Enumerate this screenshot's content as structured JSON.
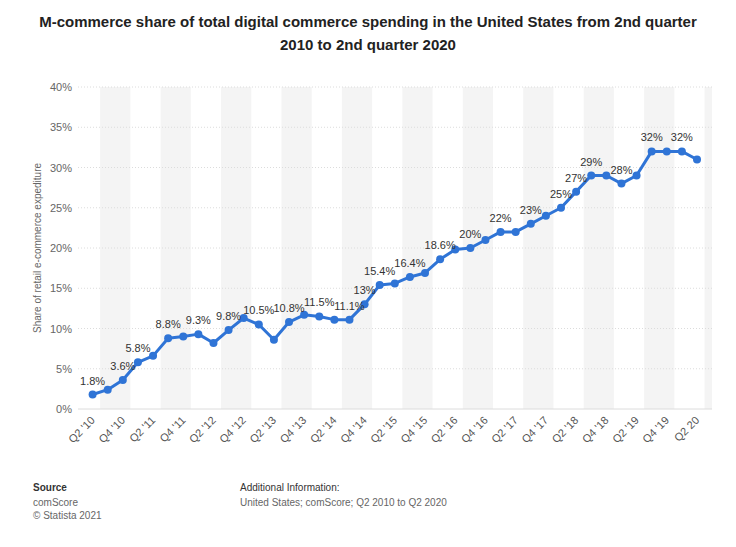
{
  "chart_data": {
    "type": "line",
    "title": "M-commerce share of total digital commerce spending in the United States from 2nd quarter 2010 to 2nd quarter 2020",
    "y_label": "Share of retail e-commerce expediture",
    "source_label": "Source",
    "source": "comScore",
    "copyright": "© Statista 2021",
    "info_label": "Additional Information:",
    "info": "United States; comScore; Q2 2010 to Q2 2020",
    "categories": [
      "Q2 '10",
      null,
      "Q4 '10",
      null,
      "Q2 '11",
      null,
      "Q4 '11",
      null,
      "Q2 '12",
      null,
      "Q4 '12",
      null,
      "Q2 '13",
      null,
      "Q4 '13",
      null,
      "Q2 '14",
      null,
      "Q4 '14",
      null,
      "Q2 '15",
      null,
      "Q4 '15",
      null,
      "Q2 '16",
      null,
      "Q4 '16",
      null,
      "Q2 '17",
      null,
      "Q4 '17",
      null,
      "Q2 '18",
      null,
      "Q4 '18",
      null,
      "Q2 '19",
      null,
      "Q4 '19",
      null,
      "Q2 20"
    ],
    "values": [
      1.8,
      2.4,
      3.6,
      5.8,
      6.6,
      8.8,
      9.0,
      9.3,
      8.2,
      9.8,
      11.3,
      10.5,
      8.6,
      10.8,
      11.7,
      11.5,
      11.1,
      11.1,
      13,
      15.4,
      15.6,
      16.4,
      16.9,
      18.6,
      19.8,
      20,
      21,
      22,
      22,
      23,
      24,
      25,
      27,
      29,
      29,
      28,
      29,
      32,
      32,
      32,
      31
    ],
    "value_labels": [
      "1.8%",
      null,
      "3.6%",
      "5.8%",
      null,
      "8.8%",
      null,
      "9.3%",
      null,
      "9.8%",
      null,
      "10.5%",
      null,
      "10.8%",
      null,
      "11.5%",
      null,
      "11.1%",
      "13%",
      "15.4%",
      null,
      "16.4%",
      null,
      "18.6%",
      null,
      "20%",
      null,
      "22%",
      null,
      "23%",
      null,
      "25%",
      "27%",
      "29%",
      null,
      "28%",
      null,
      "32%",
      null,
      "32%",
      null
    ],
    "data_labels": true,
    "color": "#2f74d6",
    "marker": "circle",
    "ylim": [
      0,
      40
    ],
    "yticks": [
      {
        "value": 0,
        "label": "0%"
      },
      {
        "value": 5,
        "label": "5%"
      },
      {
        "value": 10,
        "label": "10%"
      },
      {
        "value": 15,
        "label": "15%"
      },
      {
        "value": 20,
        "label": "20%"
      },
      {
        "value": 25,
        "label": "25%"
      },
      {
        "value": 30,
        "label": "30%"
      },
      {
        "value": 35,
        "label": "35%"
      },
      {
        "value": 40,
        "label": "40%"
      }
    ],
    "grid": true
  }
}
